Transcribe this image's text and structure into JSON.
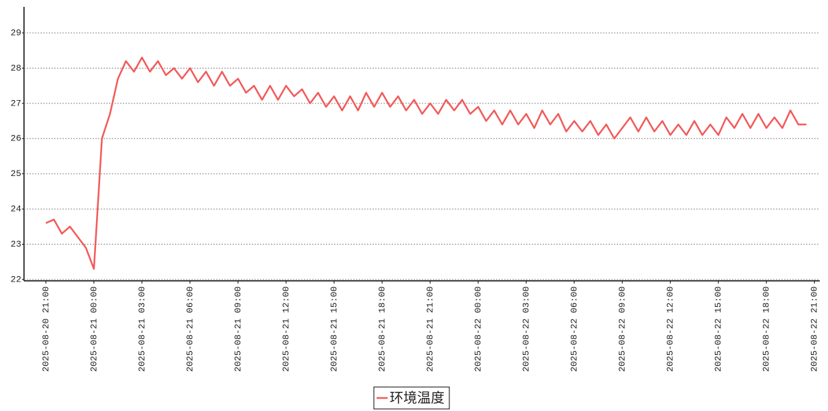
{
  "chart_data": {
    "type": "line",
    "x": [
      "2025-08-20 21:00",
      "2025-08-20 21:30",
      "2025-08-20 22:00",
      "2025-08-20 22:30",
      "2025-08-20 23:00",
      "2025-08-20 23:30",
      "2025-08-21 00:00",
      "2025-08-21 00:30",
      "2025-08-21 01:00",
      "2025-08-21 01:30",
      "2025-08-21 02:00",
      "2025-08-21 02:30",
      "2025-08-21 03:00",
      "2025-08-21 03:30",
      "2025-08-21 04:00",
      "2025-08-21 04:30",
      "2025-08-21 05:00",
      "2025-08-21 05:30",
      "2025-08-21 06:00",
      "2025-08-21 06:30",
      "2025-08-21 07:00",
      "2025-08-21 07:30",
      "2025-08-21 08:00",
      "2025-08-21 08:30",
      "2025-08-21 09:00",
      "2025-08-21 09:30",
      "2025-08-21 10:00",
      "2025-08-21 10:30",
      "2025-08-21 11:00",
      "2025-08-21 11:30",
      "2025-08-21 12:00",
      "2025-08-21 12:30",
      "2025-08-21 13:00",
      "2025-08-21 13:30",
      "2025-08-21 14:00",
      "2025-08-21 14:30",
      "2025-08-21 15:00",
      "2025-08-21 15:30",
      "2025-08-21 16:00",
      "2025-08-21 16:30",
      "2025-08-21 17:00",
      "2025-08-21 17:30",
      "2025-08-21 18:00",
      "2025-08-21 18:30",
      "2025-08-21 19:00",
      "2025-08-21 19:30",
      "2025-08-21 20:00",
      "2025-08-21 20:30",
      "2025-08-21 21:00",
      "2025-08-21 21:30",
      "2025-08-21 22:00",
      "2025-08-21 22:30",
      "2025-08-21 23:00",
      "2025-08-21 23:30",
      "2025-08-22 00:00",
      "2025-08-22 00:30",
      "2025-08-22 01:00",
      "2025-08-22 01:30",
      "2025-08-22 02:00",
      "2025-08-22 02:30",
      "2025-08-22 03:00",
      "2025-08-22 03:30",
      "2025-08-22 04:00",
      "2025-08-22 04:30",
      "2025-08-22 05:00",
      "2025-08-22 05:30",
      "2025-08-22 06:00",
      "2025-08-22 06:30",
      "2025-08-22 07:00",
      "2025-08-22 07:30",
      "2025-08-22 08:00",
      "2025-08-22 08:30",
      "2025-08-22 09:00",
      "2025-08-22 09:30",
      "2025-08-22 10:00",
      "2025-08-22 10:30",
      "2025-08-22 11:00",
      "2025-08-22 11:30",
      "2025-08-22 12:00",
      "2025-08-22 12:30",
      "2025-08-22 13:00",
      "2025-08-22 13:30",
      "2025-08-22 14:00",
      "2025-08-22 14:30",
      "2025-08-22 15:00",
      "2025-08-22 15:30",
      "2025-08-22 16:00",
      "2025-08-22 16:30",
      "2025-08-22 17:00",
      "2025-08-22 17:30",
      "2025-08-22 18:00",
      "2025-08-22 18:30",
      "2025-08-22 19:00",
      "2025-08-22 19:30",
      "2025-08-22 20:00",
      "2025-08-22 20:30"
    ],
    "series": [
      {
        "name": "环境温度",
        "color": "#f25a5a",
        "values": [
          23.6,
          23.7,
          23.3,
          23.5,
          23.2,
          22.9,
          22.3,
          26.0,
          26.7,
          27.7,
          28.2,
          27.9,
          28.3,
          27.9,
          28.2,
          27.8,
          28.0,
          27.7,
          28.0,
          27.6,
          27.9,
          27.5,
          27.9,
          27.5,
          27.7,
          27.3,
          27.5,
          27.1,
          27.5,
          27.1,
          27.5,
          27.2,
          27.4,
          27.0,
          27.3,
          26.9,
          27.2,
          26.8,
          27.2,
          26.8,
          27.3,
          26.9,
          27.3,
          26.9,
          27.2,
          26.8,
          27.1,
          26.7,
          27.0,
          26.7,
          27.1,
          26.8,
          27.1,
          26.7,
          26.9,
          26.5,
          26.8,
          26.4,
          26.8,
          26.4,
          26.7,
          26.3,
          26.8,
          26.4,
          26.7,
          26.2,
          26.5,
          26.2,
          26.5,
          26.1,
          26.4,
          26.0,
          26.3,
          26.6,
          26.2,
          26.6,
          26.2,
          26.5,
          26.1,
          26.4,
          26.1,
          26.5,
          26.1,
          26.4,
          26.1,
          26.6,
          26.3,
          26.7,
          26.3,
          26.7,
          26.3,
          26.6,
          26.3,
          26.8,
          26.4,
          26.4
        ]
      }
    ],
    "xlim": [
      "2025-08-20 19:38",
      "2025-08-22 21:20"
    ],
    "xticks": [
      "2025-08-20 21:00",
      "2025-08-21 00:00",
      "2025-08-21 03:00",
      "2025-08-21 06:00",
      "2025-08-21 09:00",
      "2025-08-21 12:00",
      "2025-08-21 15:00",
      "2025-08-21 18:00",
      "2025-08-21 21:00",
      "2025-08-22 00:00",
      "2025-08-22 03:00",
      "2025-08-22 06:00",
      "2025-08-22 09:00",
      "2025-08-22 12:00",
      "2025-08-22 15:00",
      "2025-08-22 18:00",
      "2025-08-22 21:00"
    ],
    "ylim": [
      21.96,
      29.74
    ],
    "yticks": [
      22,
      23,
      24,
      25,
      26,
      27,
      28,
      29
    ],
    "grid": true
  }
}
